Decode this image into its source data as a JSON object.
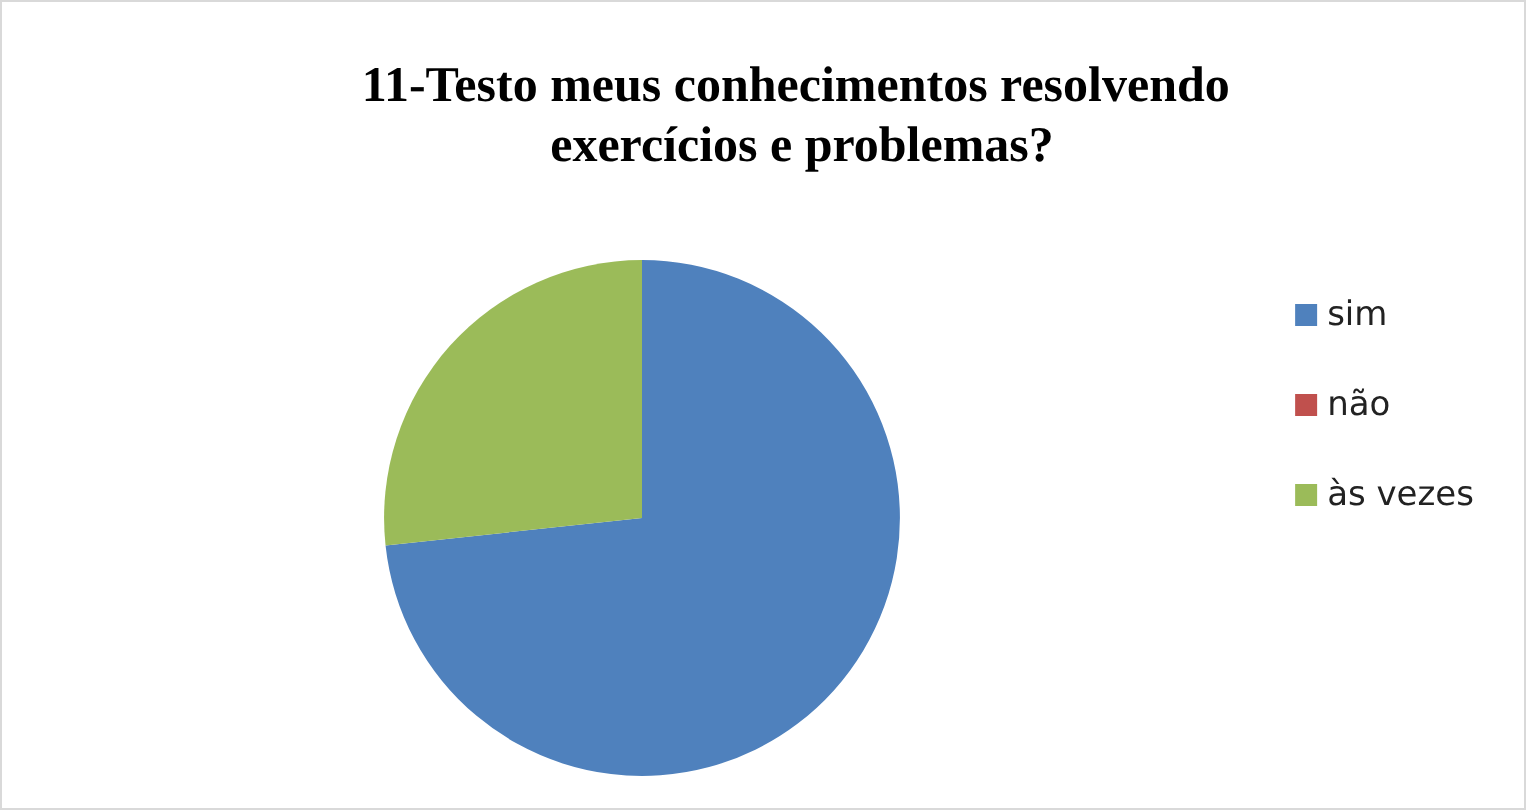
{
  "chart_data": {
    "type": "pie",
    "title": "11-Testo meus conhecimentos resolvendo exercícios e problemas?",
    "categories": [
      "sim",
      "não",
      "às vezes"
    ],
    "values": [
      73.3,
      0,
      26.7
    ],
    "colors": [
      "#4f81bd",
      "#c0504d",
      "#9bbb59"
    ],
    "legend": "right"
  }
}
